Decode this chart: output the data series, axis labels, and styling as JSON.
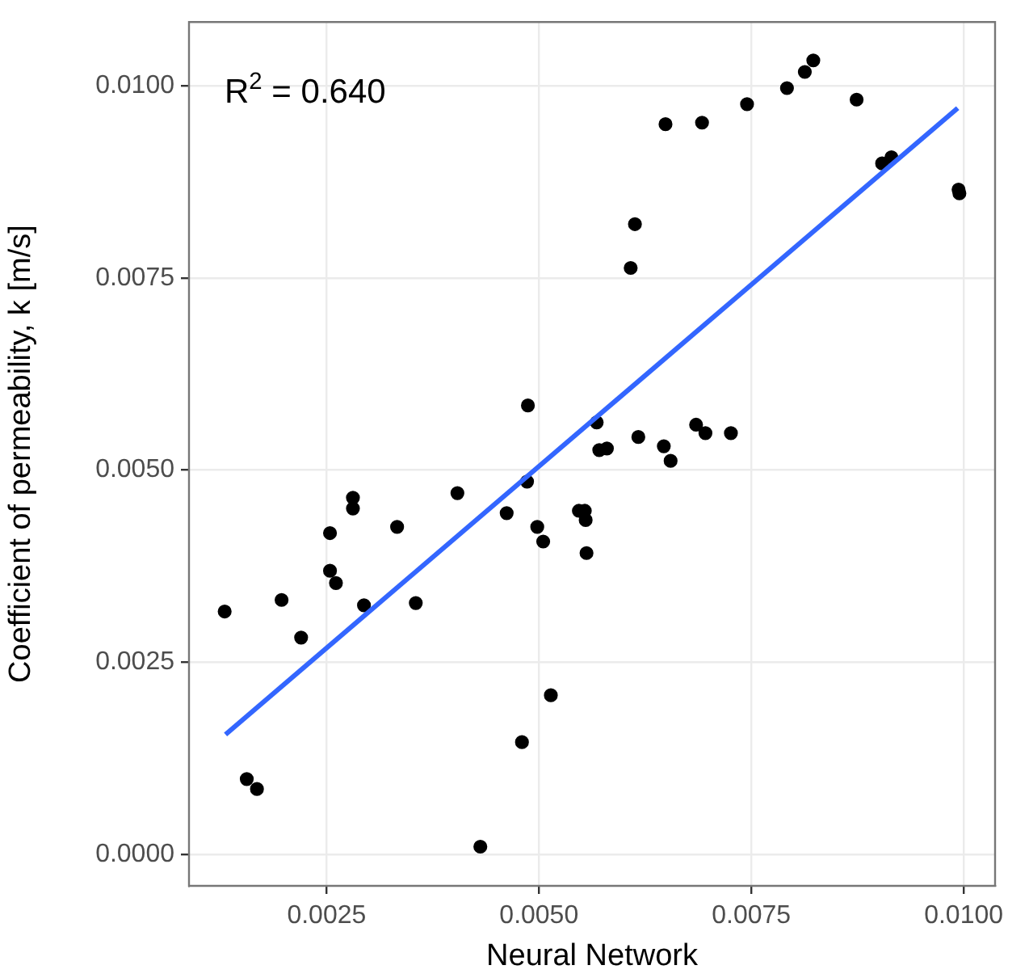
{
  "chart_data": {
    "type": "scatter",
    "xlabel": "Neural Network",
    "ylabel": "Coefficient of permeability, k [m/s]",
    "annotations": [
      "R$^{2}$ = 0.640"
    ],
    "xlim": [
      0.00088,
      0.01037
    ],
    "ylim": [
      -0.00041,
      0.01083
    ],
    "xticks": [
      {
        "value": 0.0025,
        "label": "0.0025"
      },
      {
        "value": 0.005,
        "label": "0.0050"
      },
      {
        "value": 0.0075,
        "label": "0.0075"
      },
      {
        "value": 0.01,
        "label": "0.0100"
      }
    ],
    "yticks": [
      {
        "value": 0,
        "label": "0.0000"
      },
      {
        "value": 0.0025,
        "label": "0.0025"
      },
      {
        "value": 0.005,
        "label": "0.0050"
      },
      {
        "value": 0.0075,
        "label": "0.0075"
      },
      {
        "value": 0.01,
        "label": "0.0100"
      }
    ],
    "grid": true,
    "marker": "circle",
    "series": [
      {
        "color": "#000000",
        "x": [
          0.0013,
          0.00197,
          0.0022,
          0.00254,
          0.00254,
          0.00261,
          0.00281,
          0.00281,
          0.00294,
          0.00333,
          0.00355,
          0.00404,
          0.00462,
          0.00486,
          0.00498,
          0.00505,
          0.00547,
          0.00554,
          0.00555,
          0.00556,
          0.00514,
          0.0048,
          0.00431,
          0.00156,
          0.00168,
          0.00487,
          0.00568,
          0.00571,
          0.0058,
          0.00617,
          0.00647,
          0.00655,
          0.00685,
          0.00696,
          0.00726,
          0.00649,
          0.00692,
          0.00745,
          0.00792,
          0.00813,
          0.00823,
          0.00874,
          0.00904,
          0.00915,
          0.00994,
          0.00995,
          0.00613,
          0.00608
        ],
        "values": [
          0.00316,
          0.00331,
          0.00282,
          0.00418,
          0.00369,
          0.00353,
          0.00464,
          0.0045,
          0.00324,
          0.00426,
          0.00327,
          0.0047,
          0.00444,
          0.00485,
          0.00426,
          0.00407,
          0.00447,
          0.00447,
          0.00435,
          0.00392,
          0.00207,
          0.00146,
          0.0001,
          0.00098,
          0.00085,
          0.00584,
          0.00562,
          0.00526,
          0.00528,
          0.00543,
          0.00531,
          0.00512,
          0.00559,
          0.00548,
          0.00548,
          0.0095,
          0.00952,
          0.00976,
          0.00997,
          0.01018,
          0.01033,
          0.00982,
          0.00899,
          0.00907,
          0.00865,
          0.0086,
          0.0082,
          0.00763
        ]
      },
      {
        "type": "line",
        "color": "#3366ff",
        "marker": "none",
        "x": [
          0.00131,
          0.00993
        ],
        "values": [
          0.00156,
          0.00971
        ]
      }
    ]
  }
}
